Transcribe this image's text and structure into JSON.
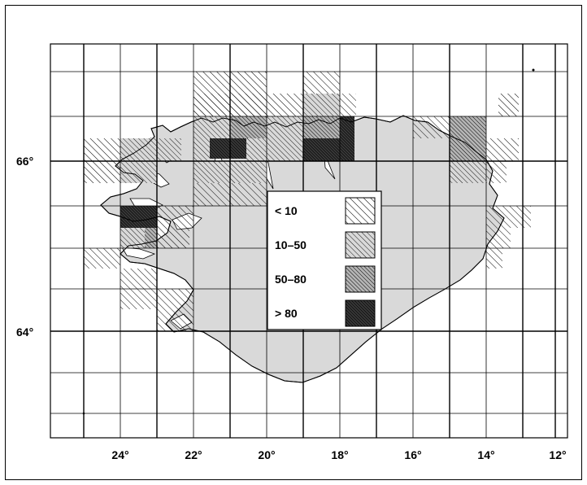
{
  "map": {
    "x_ticks": [
      "24°",
      "22°",
      "20°",
      "18°",
      "16°",
      "14°",
      "12°"
    ],
    "y_ticks": [
      "66°",
      "64°"
    ],
    "land_color": "#d9d9d9",
    "grid_color": "#000000"
  },
  "legend": {
    "items": [
      {
        "label": "< 10",
        "pattern": "sparse-hatch"
      },
      {
        "label": "10–50",
        "pattern": "light-hatch"
      },
      {
        "label": "50–80",
        "pattern": "medium-hatch"
      },
      {
        "label": "> 80",
        "pattern": "dense-hatch"
      }
    ]
  }
}
